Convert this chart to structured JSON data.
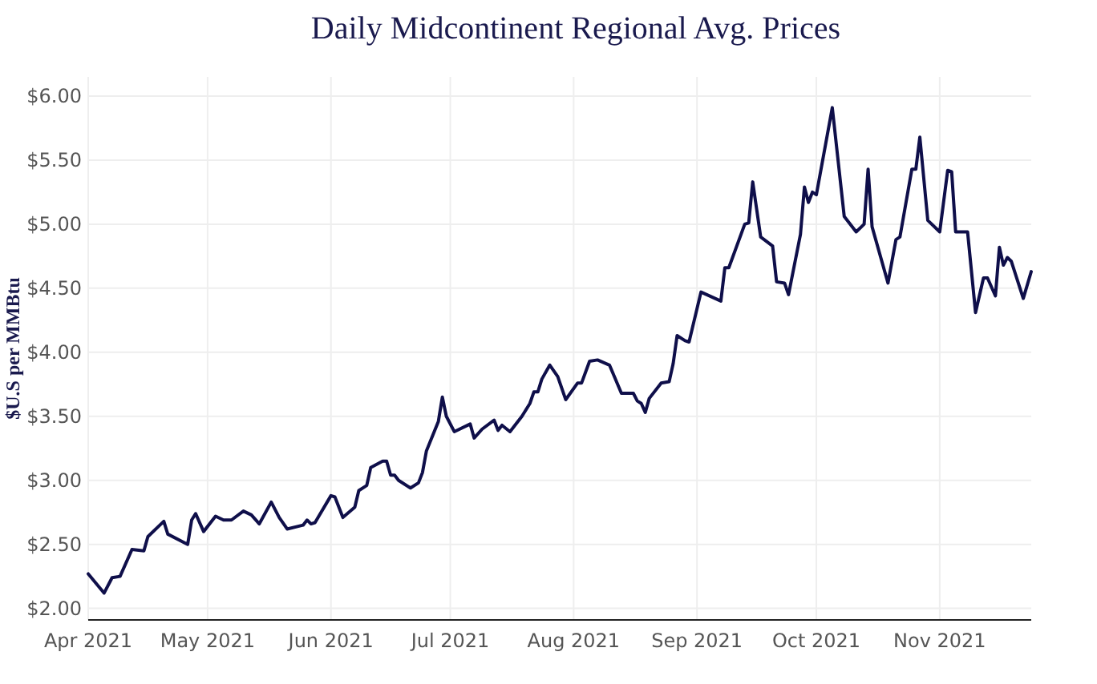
{
  "chart_data": {
    "type": "line",
    "title": "Daily Midcontinent Regional Avg. Prices",
    "ylabel": "$U.S per MMBtu",
    "x": [
      "2021-04-01",
      "2021-04-05",
      "2021-04-07",
      "2021-04-09",
      "2021-04-12",
      "2021-04-15",
      "2021-04-16",
      "2021-04-20",
      "2021-04-21",
      "2021-04-26",
      "2021-04-27",
      "2021-04-28",
      "2021-04-30",
      "2021-05-03",
      "2021-05-05",
      "2021-05-07",
      "2021-05-10",
      "2021-05-12",
      "2021-05-14",
      "2021-05-17",
      "2021-05-19",
      "2021-05-21",
      "2021-05-25",
      "2021-05-26",
      "2021-05-27",
      "2021-05-28",
      "2021-06-01",
      "2021-06-02",
      "2021-06-04",
      "2021-06-07",
      "2021-06-08",
      "2021-06-10",
      "2021-06-11",
      "2021-06-14",
      "2021-06-15",
      "2021-06-16",
      "2021-06-17",
      "2021-06-18",
      "2021-06-21",
      "2021-06-23",
      "2021-06-24",
      "2021-06-25",
      "2021-06-28",
      "2021-06-29",
      "2021-06-30",
      "2021-07-02",
      "2021-07-06",
      "2021-07-07",
      "2021-07-09",
      "2021-07-12",
      "2021-07-13",
      "2021-07-14",
      "2021-07-16",
      "2021-07-19",
      "2021-07-21",
      "2021-07-22",
      "2021-07-23",
      "2021-07-24",
      "2021-07-26",
      "2021-07-28",
      "2021-07-30",
      "2021-08-02",
      "2021-08-03",
      "2021-08-05",
      "2021-08-07",
      "2021-08-10",
      "2021-08-13",
      "2021-08-16",
      "2021-08-17",
      "2021-08-18",
      "2021-08-19",
      "2021-08-20",
      "2021-08-23",
      "2021-08-25",
      "2021-08-26",
      "2021-08-27",
      "2021-08-29",
      "2021-08-30",
      "2021-09-02",
      "2021-09-07",
      "2021-09-08",
      "2021-09-09",
      "2021-09-13",
      "2021-09-14",
      "2021-09-15",
      "2021-09-17",
      "2021-09-20",
      "2021-09-21",
      "2021-09-23",
      "2021-09-24",
      "2021-09-27",
      "2021-09-28",
      "2021-09-29",
      "2021-09-30",
      "2021-10-01",
      "2021-10-05",
      "2021-10-08",
      "2021-10-11",
      "2021-10-13",
      "2021-10-14",
      "2021-10-15",
      "2021-10-19",
      "2021-10-21",
      "2021-10-22",
      "2021-10-25",
      "2021-10-26",
      "2021-10-27",
      "2021-10-29",
      "2021-11-01",
      "2021-11-03",
      "2021-11-04",
      "2021-11-05",
      "2021-11-08",
      "2021-11-10",
      "2021-11-12",
      "2021-11-13",
      "2021-11-15",
      "2021-11-16",
      "2021-11-17",
      "2021-11-18",
      "2021-11-19",
      "2021-11-22",
      "2021-11-24"
    ],
    "series": [
      {
        "color": "#0f0f4a",
        "values": [
          2.27,
          2.12,
          2.24,
          2.25,
          2.46,
          2.45,
          2.56,
          2.68,
          2.58,
          2.5,
          2.69,
          2.74,
          2.6,
          2.72,
          2.69,
          2.69,
          2.76,
          2.73,
          2.66,
          2.83,
          2.71,
          2.62,
          2.65,
          2.69,
          2.66,
          2.67,
          2.88,
          2.87,
          2.71,
          2.79,
          2.92,
          2.96,
          3.1,
          3.15,
          3.15,
          3.04,
          3.04,
          3.0,
          2.94,
          2.98,
          3.06,
          3.23,
          3.46,
          3.65,
          3.5,
          3.38,
          3.44,
          3.33,
          3.4,
          3.47,
          3.39,
          3.43,
          3.38,
          3.5,
          3.6,
          3.69,
          3.69,
          3.79,
          3.9,
          3.81,
          3.63,
          3.76,
          3.76,
          3.93,
          3.94,
          3.9,
          3.68,
          3.68,
          3.62,
          3.6,
          3.53,
          3.64,
          3.76,
          3.77,
          3.91,
          4.13,
          4.09,
          4.08,
          4.47,
          4.4,
          4.66,
          4.66,
          5.0,
          5.01,
          5.33,
          4.9,
          4.83,
          4.55,
          4.54,
          4.45,
          4.92,
          5.29,
          5.17,
          5.25,
          5.23,
          5.91,
          5.06,
          4.94,
          5.0,
          5.43,
          4.98,
          4.54,
          4.88,
          4.9,
          5.43,
          5.43,
          5.68,
          5.03,
          4.94,
          5.42,
          5.41,
          4.94,
          4.94,
          4.31,
          4.58,
          4.58,
          4.44,
          4.82,
          4.68,
          4.74,
          4.71,
          4.42,
          4.63
        ]
      }
    ],
    "xlim": [
      "2021-04-01",
      "2021-11-24"
    ],
    "xticks": [
      {
        "value": "2021-04-01",
        "label": "Apr 2021"
      },
      {
        "value": "2021-05-01",
        "label": "May 2021"
      },
      {
        "value": "2021-06-01",
        "label": "Jun 2021"
      },
      {
        "value": "2021-07-01",
        "label": "Jul 2021"
      },
      {
        "value": "2021-08-01",
        "label": "Aug 2021"
      },
      {
        "value": "2021-09-01",
        "label": "Sep 2021"
      },
      {
        "value": "2021-10-01",
        "label": "Oct 2021"
      },
      {
        "value": "2021-11-01",
        "label": "Nov 2021"
      }
    ],
    "ylim": [
      1.91,
      6.15
    ],
    "yticks": [
      {
        "value": 2,
        "label": "$2.00"
      },
      {
        "value": 2.5,
        "label": "$2.50"
      },
      {
        "value": 3,
        "label": "$3.00"
      },
      {
        "value": 3.5,
        "label": "$3.50"
      },
      {
        "value": 4,
        "label": "$4.00"
      },
      {
        "value": 4.5,
        "label": "$4.50"
      },
      {
        "value": 5,
        "label": "$5.00"
      },
      {
        "value": 5.5,
        "label": "$5.50"
      },
      {
        "value": 6,
        "label": "$6.00"
      }
    ],
    "grid": true,
    "marker": "none",
    "line_style": "solid"
  }
}
